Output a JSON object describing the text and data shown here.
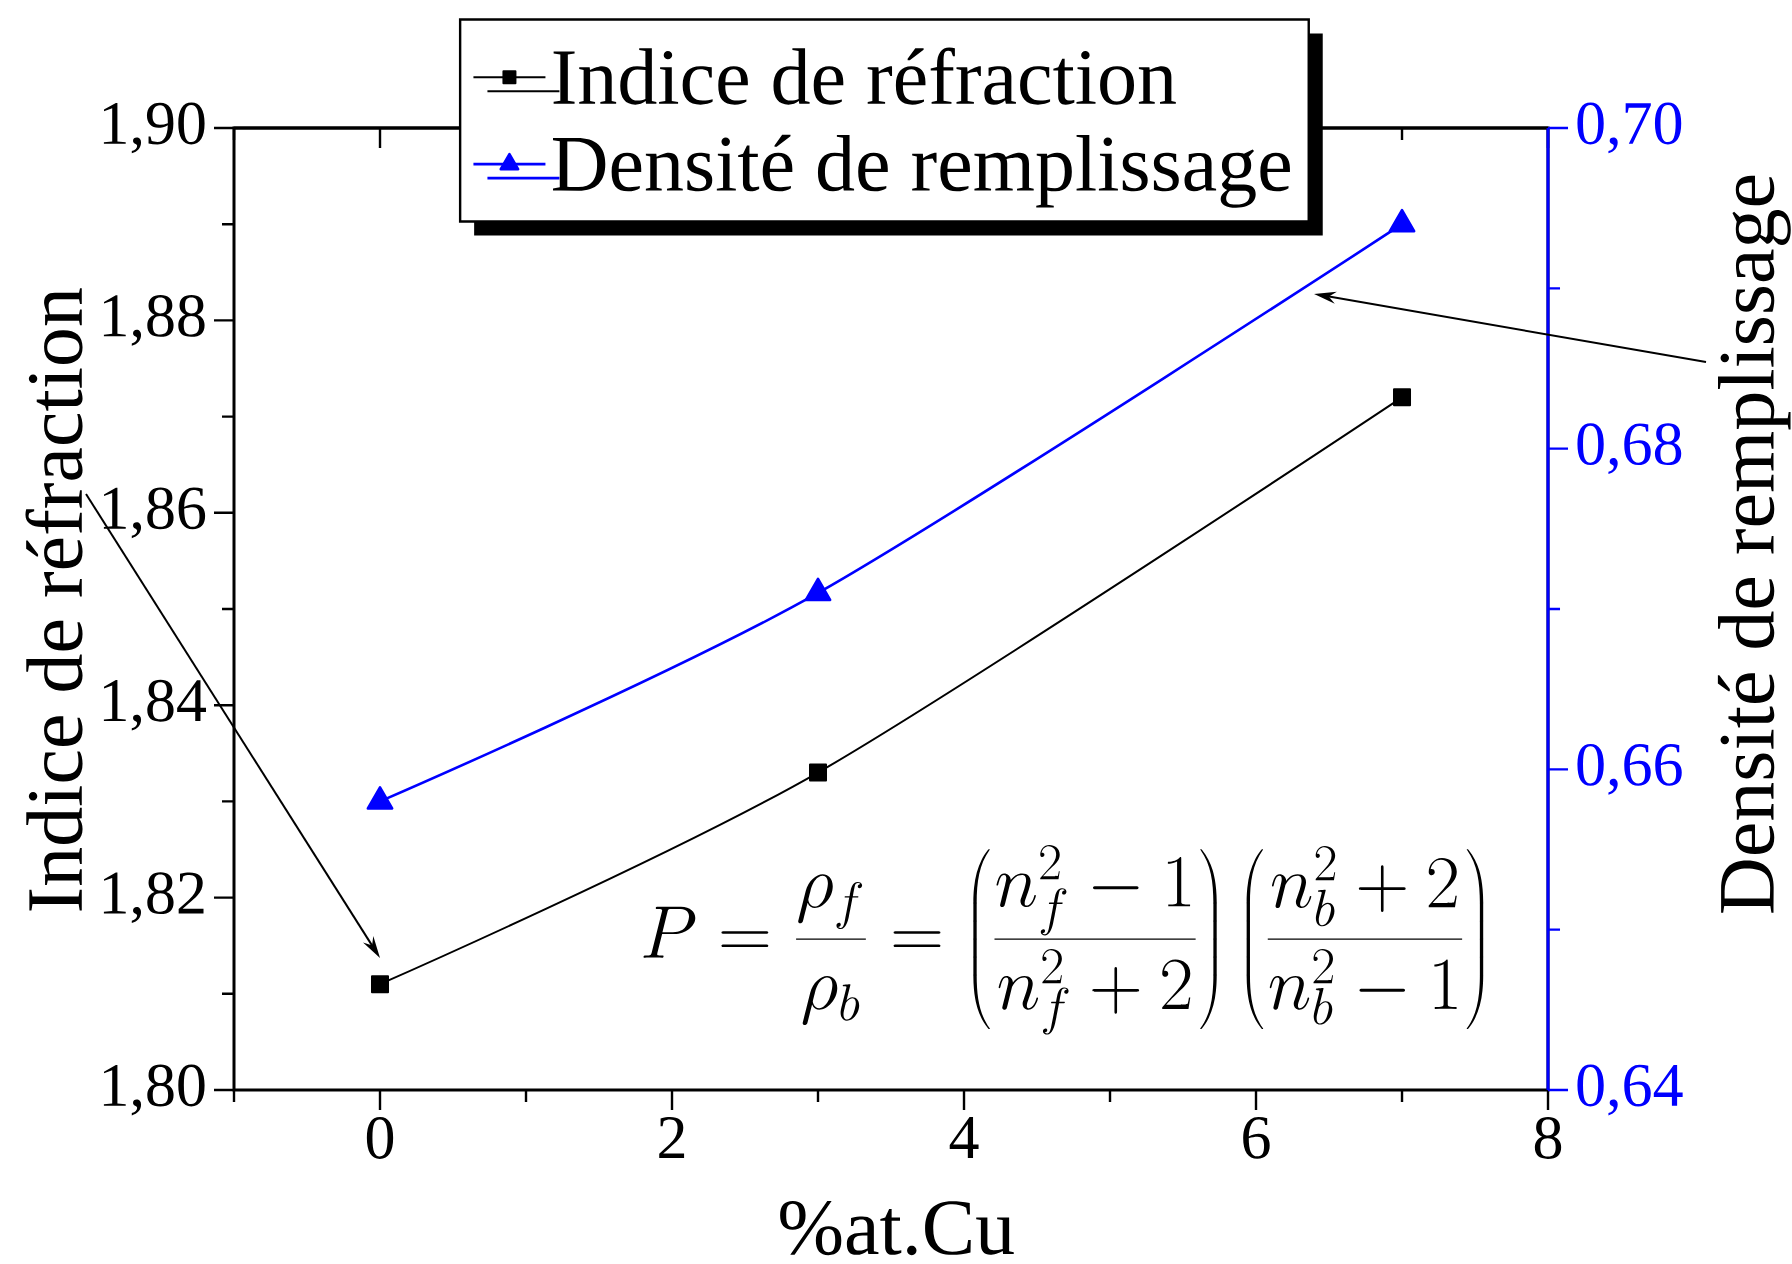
{
  "chart_data": {
    "type": "line",
    "xlabel": "%at.Cu",
    "ylabel": "Indice de réfraction",
    "y2label": "Densité de remplissage",
    "annotations": [
      "P=\\frac{\\rho_f}{\\rho_b}=\\left(\\frac{n_f^2-1}{n_f^2+2}\\right)\\left(\\frac{n_b^2+2}{n_b^2-1}\\right)"
    ],
    "x": [
      0,
      3,
      7
    ],
    "series": [
      {
        "name": "Indice de réfraction",
        "color": "#000000",
        "marker": "square",
        "values": [
          1.811,
          1.833,
          1.872
        ]
      },
      {
        "name": "Densité de remplissage",
        "color": "#0000ff",
        "marker": "triangle",
        "axis": "y2",
        "values": [
          0.658,
          0.671,
          0.694
        ]
      }
    ],
    "xlim": [
      -1,
      8
    ],
    "xticks": [
      0,
      2,
      4,
      6,
      8
    ],
    "ylim": [
      1.8,
      1.9
    ],
    "yticks": [
      {
        "value": 1.8,
        "label": "1,80"
      },
      {
        "value": 1.82,
        "label": "1,82"
      },
      {
        "value": 1.84,
        "label": "1,84"
      },
      {
        "value": 1.86,
        "label": "1,86"
      },
      {
        "value": 1.88,
        "label": "1,88"
      },
      {
        "value": 1.9,
        "label": "1,90"
      }
    ],
    "y2lim": [
      0.64,
      0.7
    ],
    "y2ticks": [
      {
        "value": 0.64,
        "label": "0,64"
      },
      {
        "value": 0.66,
        "label": "0,66"
      },
      {
        "value": 0.68,
        "label": "0,68"
      },
      {
        "value": 0.7,
        "label": "0,70"
      }
    ],
    "legend": "top"
  }
}
